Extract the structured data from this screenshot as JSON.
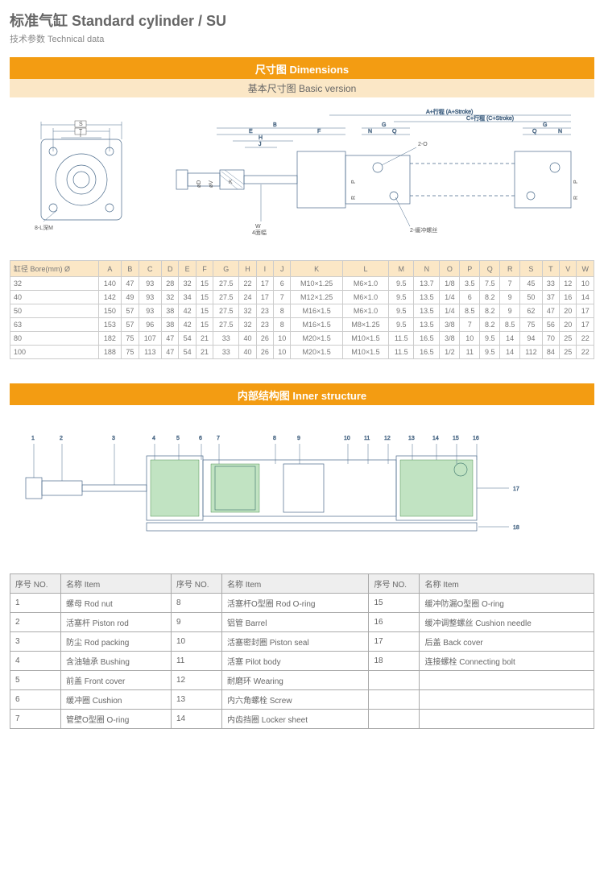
{
  "header": {
    "title": "标准气缸 Standard cylinder / SU",
    "subtitle": "技术参数 Technical data"
  },
  "sections": {
    "dimensions": {
      "title": "尺寸图 Dimensions",
      "subtitle": "基本尺寸图 Basic version"
    },
    "inner": {
      "title": "内部结构图 Inner structure"
    }
  },
  "diagramLabels": {
    "front": {
      "S": "S",
      "T": "T",
      "I": "I",
      "note": "8-L深M"
    },
    "side": {
      "B": "B",
      "E": "E",
      "F": "F",
      "H": "H",
      "J": "J",
      "K": "K",
      "D": "øD",
      "V": "øV",
      "W": "W",
      "Wnote": "4面幅",
      "A": "A+行程 (A+Stroke)",
      "C": "C+行程 (C+Stroke)",
      "G": "G",
      "N": "N",
      "Q": "Q",
      "R": "R",
      "P": "P",
      "O2": "2-O",
      "cush": "2-缓冲螺丝"
    }
  },
  "dimTable": {
    "headerLabel": "缸径 Bore(mm) Ø",
    "cols": [
      "A",
      "B",
      "C",
      "D",
      "E",
      "F",
      "G",
      "H",
      "I",
      "J",
      "K",
      "L",
      "M",
      "N",
      "O",
      "P",
      "Q",
      "R",
      "S",
      "T",
      "V",
      "W"
    ],
    "rows": [
      {
        "bore": "32",
        "v": [
          "140",
          "47",
          "93",
          "28",
          "32",
          "15",
          "27.5",
          "22",
          "17",
          "6",
          "M10×1.25",
          "M6×1.0",
          "9.5",
          "13.7",
          "1/8",
          "3.5",
          "7.5",
          "7",
          "45",
          "33",
          "12",
          "10"
        ]
      },
      {
        "bore": "40",
        "v": [
          "142",
          "49",
          "93",
          "32",
          "34",
          "15",
          "27.5",
          "24",
          "17",
          "7",
          "M12×1.25",
          "M6×1.0",
          "9.5",
          "13.5",
          "1/4",
          "6",
          "8.2",
          "9",
          "50",
          "37",
          "16",
          "14"
        ]
      },
      {
        "bore": "50",
        "v": [
          "150",
          "57",
          "93",
          "38",
          "42",
          "15",
          "27.5",
          "32",
          "23",
          "8",
          "M16×1.5",
          "M6×1.0",
          "9.5",
          "13.5",
          "1/4",
          "8.5",
          "8.2",
          "9",
          "62",
          "47",
          "20",
          "17"
        ]
      },
      {
        "bore": "63",
        "v": [
          "153",
          "57",
          "96",
          "38",
          "42",
          "15",
          "27.5",
          "32",
          "23",
          "8",
          "M16×1.5",
          "M8×1.25",
          "9.5",
          "13.5",
          "3/8",
          "7",
          "8.2",
          "8.5",
          "75",
          "56",
          "20",
          "17"
        ]
      },
      {
        "bore": "80",
        "v": [
          "182",
          "75",
          "107",
          "47",
          "54",
          "21",
          "33",
          "40",
          "26",
          "10",
          "M20×1.5",
          "M10×1.5",
          "11.5",
          "16.5",
          "3/8",
          "10",
          "9.5",
          "14",
          "94",
          "70",
          "25",
          "22"
        ]
      },
      {
        "bore": "100",
        "v": [
          "188",
          "75",
          "113",
          "47",
          "54",
          "21",
          "33",
          "40",
          "26",
          "10",
          "M20×1.5",
          "M10×1.5",
          "11.5",
          "16.5",
          "1/2",
          "11",
          "9.5",
          "14",
          "112",
          "84",
          "25",
          "22"
        ]
      }
    ]
  },
  "partsTable": {
    "headers": {
      "no": "序号 NO.",
      "item": "名称 Item"
    },
    "rows": [
      [
        "1",
        "螺母 Rod nut",
        "8",
        "活塞杆O型圈 Rod O-ring",
        "15",
        "缓冲防漏O型圈 O-ring"
      ],
      [
        "2",
        "活塞杆 Piston rod",
        "9",
        "铝管 Barrel",
        "16",
        "缓冲调整螺丝 Cushion needle"
      ],
      [
        "3",
        "防尘 Rod packing",
        "10",
        "活塞密封圈 Piston seal",
        "17",
        "后盖 Back cover"
      ],
      [
        "4",
        "含油轴承 Bushing",
        "11",
        "活塞 Pilot body",
        "18",
        "连接螺栓 Connecting bolt"
      ],
      [
        "5",
        "前盖 Front cover",
        "12",
        "耐磨环 Wearing",
        "",
        ""
      ],
      [
        "6",
        "缓冲圈 Cushion",
        "13",
        "内六角螺栓 Screw",
        "",
        ""
      ],
      [
        "7",
        "管壁O型圈 O-ring",
        "14",
        "内齿挡圈 Locker sheet",
        "",
        ""
      ]
    ]
  },
  "colors": {
    "orange": "#f39c12",
    "lightorange": "#fbe7c6",
    "lineblue": "#4a6a8a",
    "hatch": "#4caf50"
  }
}
